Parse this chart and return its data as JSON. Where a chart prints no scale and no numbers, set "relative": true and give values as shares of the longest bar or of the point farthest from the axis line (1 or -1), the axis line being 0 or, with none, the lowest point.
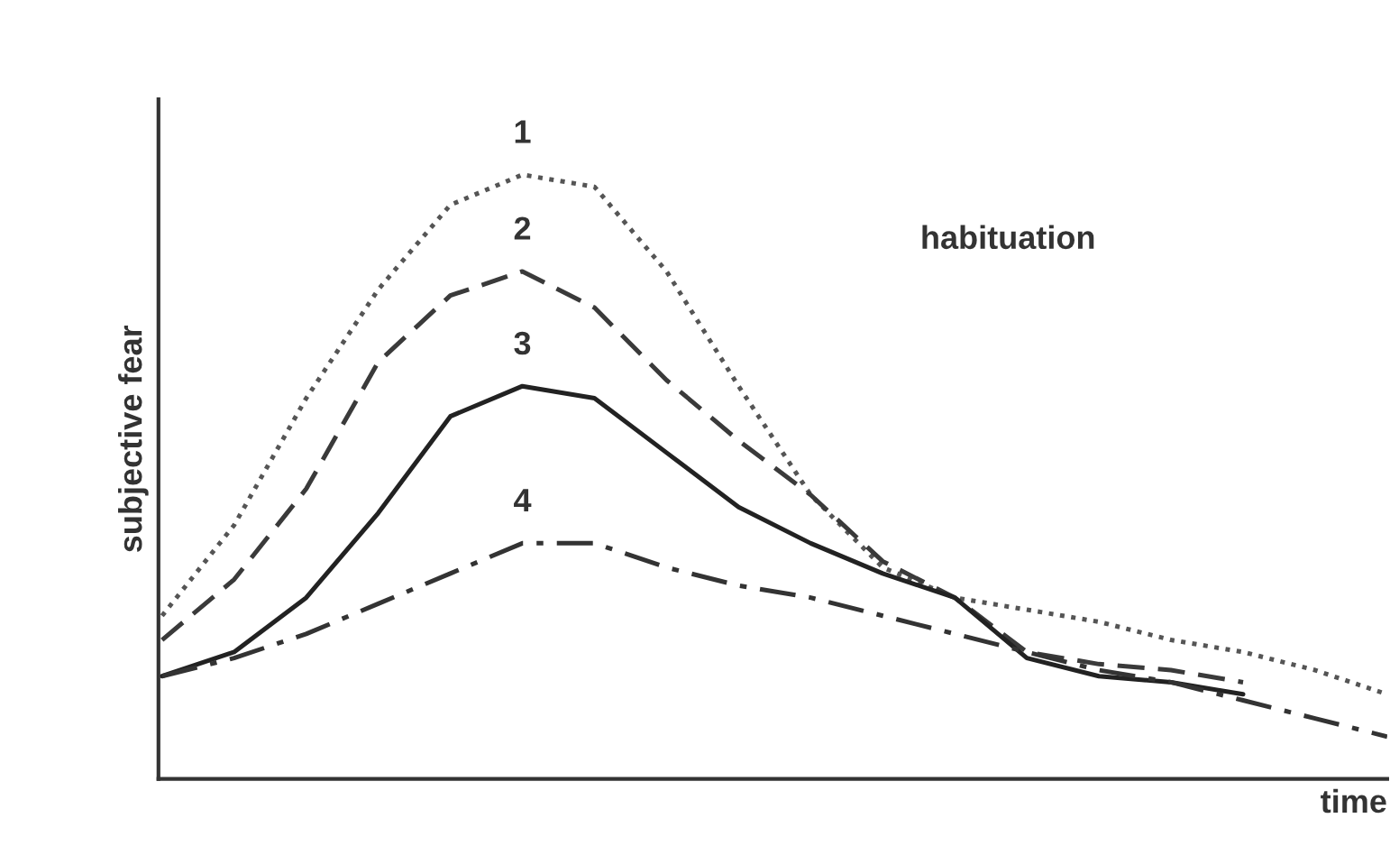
{
  "chart_data": {
    "type": "line",
    "relative": true,
    "xlabel": "time",
    "ylabel": "subjective fear",
    "annotations": [
      "habituation"
    ],
    "categories": [
      null,
      null,
      null,
      null,
      null,
      null,
      null,
      null,
      null,
      null,
      null,
      null,
      null,
      null,
      null,
      null,
      null,
      null
    ],
    "series": [
      {
        "name": "1",
        "color": "#555555",
        "line_style": "dotted",
        "values": [
          0.27,
          0.42,
          0.63,
          0.81,
          0.95,
          1.0,
          0.98,
          0.84,
          0.65,
          0.47,
          0.35,
          0.3,
          0.28,
          0.26,
          0.23,
          0.21,
          0.18,
          0.14
        ]
      },
      {
        "name": "2",
        "color": "#3a3a3a",
        "line_style": "dashed",
        "values": [
          0.23,
          0.33,
          0.48,
          0.69,
          0.8,
          0.84,
          0.78,
          0.66,
          0.56,
          0.47,
          0.36,
          0.3,
          0.21,
          0.19,
          0.18,
          0.16,
          null,
          null
        ]
      },
      {
        "name": "3",
        "color": "#222222",
        "line_style": "solid",
        "values": [
          0.17,
          0.21,
          0.3,
          0.44,
          0.6,
          0.65,
          0.63,
          0.54,
          0.45,
          0.39,
          0.34,
          0.3,
          0.2,
          0.17,
          0.16,
          0.14,
          null,
          null
        ]
      },
      {
        "name": "4",
        "color": "#333333",
        "line_style": "dashdot",
        "values": [
          0.17,
          0.2,
          0.24,
          0.29,
          0.34,
          0.39,
          0.39,
          0.35,
          0.32,
          0.3,
          0.27,
          0.24,
          0.21,
          0.18,
          0.16,
          0.13,
          0.1,
          0.07
        ]
      }
    ]
  }
}
